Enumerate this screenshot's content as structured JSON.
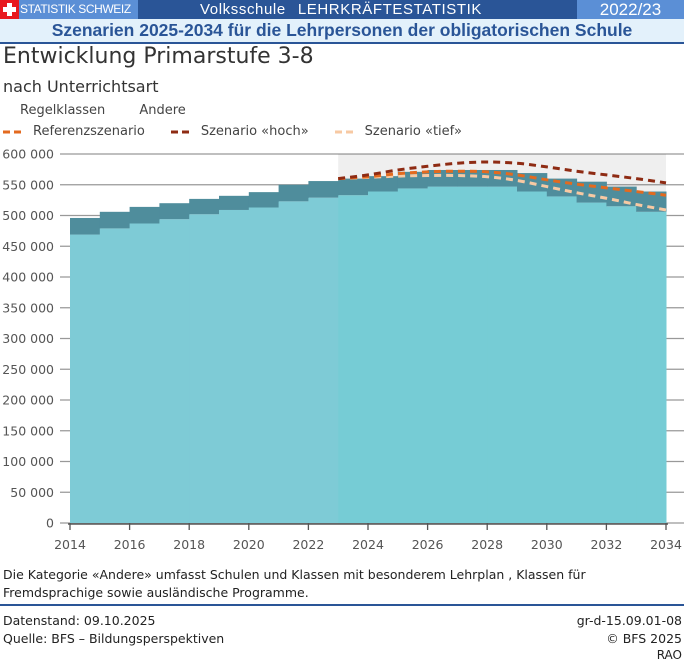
{
  "header": {
    "brand": "STATISTIK SCHWEIZ",
    "topic_part1": "Volksschule",
    "topic_part2": "LEHRKRÄFTESTATISTIK",
    "year": "2022/23",
    "subtitle": "Szenarien 2025-2034 für die Lehrpersonen der obligatorischen Schule"
  },
  "colors": {
    "header_dark": "#2a5597",
    "header_light": "#5b8fd6",
    "regelklassen": "#7ecbd6",
    "andere": "#4f8d9c",
    "referenz": "#e36a1f",
    "hoch": "#8e2b13",
    "tief": "#f7c9a3",
    "projection_bg": "#efefef"
  },
  "chart_data": {
    "type": "area",
    "title": "Entwicklung Primarstufe 3-8",
    "subtitle": "nach Unterrichtsart",
    "xlabel": "",
    "ylabel": "",
    "x": [
      2014,
      2015,
      2016,
      2017,
      2018,
      2019,
      2020,
      2021,
      2022,
      2023,
      2024,
      2025,
      2026,
      2027,
      2028,
      2029,
      2030,
      2031,
      2032,
      2033
    ],
    "xlim": [
      2014,
      2034
    ],
    "ylim": [
      0,
      600000
    ],
    "x_ticks": [
      "2014",
      "2016",
      "2018",
      "2020",
      "2022",
      "2024",
      "2026",
      "2028",
      "2030",
      "2032",
      "2034"
    ],
    "y_ticks": [
      "0",
      "50 000",
      "100 000",
      "150 000",
      "200 000",
      "250 000",
      "300 000",
      "350 000",
      "400 000",
      "450 000",
      "500 000",
      "550 000",
      "600 000"
    ],
    "projection_start": 2023,
    "grid": true,
    "legend": "top-left",
    "stacked_series": [
      {
        "name": "Regelklassen",
        "values": [
          469000,
          479000,
          487000,
          494000,
          502000,
          509000,
          513000,
          523000,
          529000,
          533000,
          539000,
          544000,
          547000,
          547000,
          547000,
          539000,
          531000,
          521000,
          515000,
          506000
        ]
      },
      {
        "name": "Andere",
        "values": [
          27000,
          27000,
          27000,
          26000,
          25000,
          23000,
          25000,
          27000,
          27000,
          27000,
          25000,
          27000,
          27000,
          27000,
          27000,
          30000,
          29000,
          34000,
          32000,
          33000
        ]
      }
    ],
    "line_series": [
      {
        "name": "Referenzszenario",
        "x": [
          2023,
          2024,
          2025,
          2026,
          2027,
          2028,
          2029,
          2030,
          2031,
          2032,
          2033,
          2034
        ],
        "values": [
          560000,
          563000,
          568000,
          571000,
          572000,
          571000,
          566000,
          558000,
          551000,
          545000,
          539000,
          533000
        ]
      },
      {
        "name": "Szenario «hoch»",
        "x": [
          2023,
          2024,
          2025,
          2026,
          2027,
          2028,
          2029,
          2030,
          2031,
          2032,
          2033,
          2034
        ],
        "values": [
          560000,
          566000,
          574000,
          580000,
          585000,
          587000,
          585000,
          579000,
          572000,
          566000,
          560000,
          553000
        ]
      },
      {
        "name": "Szenario «tief»",
        "x": [
          2023,
          2024,
          2025,
          2026,
          2027,
          2028,
          2029,
          2030,
          2031,
          2032,
          2033,
          2034
        ],
        "values": [
          560000,
          562000,
          564000,
          565000,
          565000,
          563000,
          557000,
          547000,
          537000,
          528000,
          518000,
          509000
        ]
      }
    ]
  },
  "legend": {
    "regelklassen": "Regelklassen",
    "andere": "Andere",
    "referenz": "Referenzszenario",
    "hoch": "Szenario «hoch»",
    "tief": "Szenario «tief»"
  },
  "note": "Die Kategorie «Andere» umfasst Schulen und Klassen mit besonderem Lehrplan , Klassen für Fremdsprachige sowie ausländische Programme.",
  "footer": {
    "datenstand": "Datenstand: 09.10.2025",
    "quelle": "Quelle: BFS – Bildungsperspektiven",
    "code": "gr-d-15.09.01-08",
    "copyright": "© BFS 2025",
    "rao": "RAO"
  }
}
